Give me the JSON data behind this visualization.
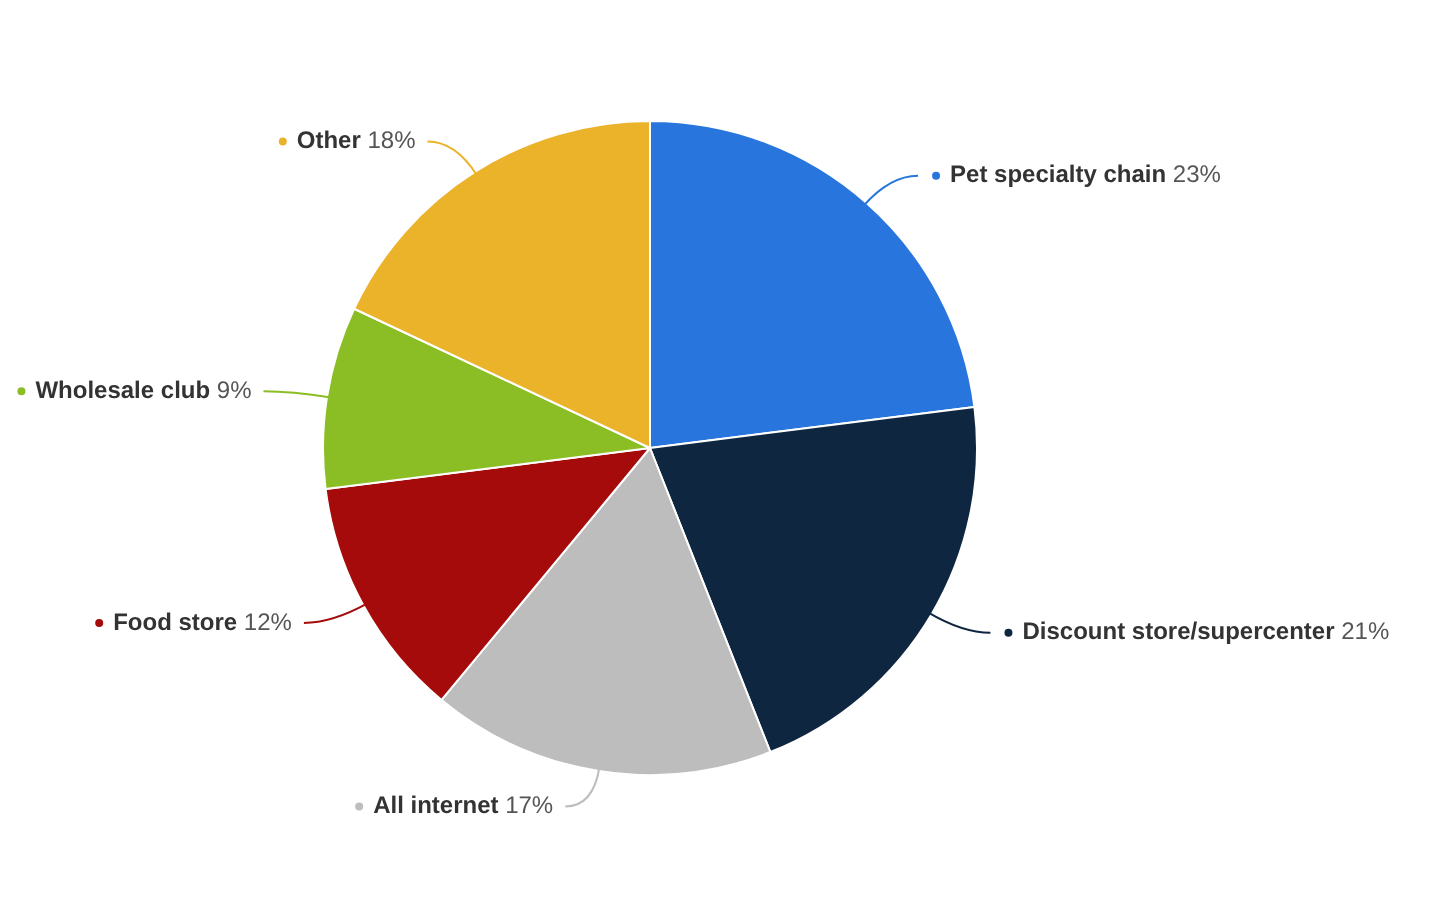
{
  "chart_data": {
    "type": "pie",
    "categories": [
      "Pet specialty chain",
      "Discount store/supercenter",
      "All internet",
      "Food store",
      "Wholesale club",
      "Other"
    ],
    "values": [
      23,
      21,
      17,
      12,
      9,
      18
    ],
    "value_labels": [
      "23%",
      "21%",
      "17%",
      "12%",
      "9%",
      "18%"
    ],
    "colors": [
      "#2876dd",
      "#0f2640",
      "#bdbdbd",
      "#a50b0b",
      "#8bbd25",
      "#ebb329"
    ],
    "legend": "right"
  }
}
